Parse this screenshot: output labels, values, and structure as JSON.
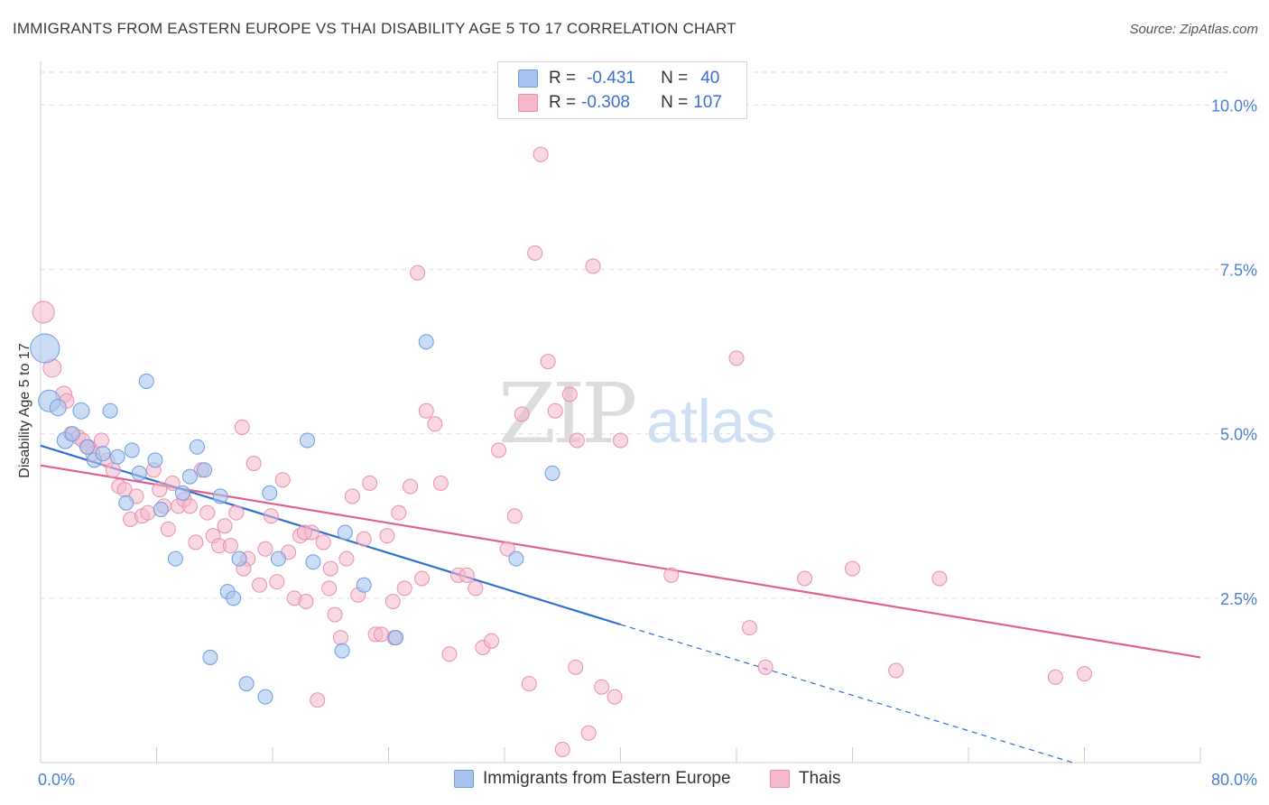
{
  "header": {
    "title": "IMMIGRANTS FROM EASTERN EUROPE VS THAI DISABILITY AGE 5 TO 17 CORRELATION CHART",
    "source": "Source: ZipAtlas.com"
  },
  "legend": {
    "rows": [
      {
        "r_label": "R =",
        "r_value": "-0.431",
        "n_label": "N =",
        "n_value": "40"
      },
      {
        "r_label": "R =",
        "r_value": "-0.308",
        "n_label": "N =",
        "n_value": "107"
      }
    ]
  },
  "watermark": {
    "zip": "ZIP",
    "atlas": "atlas"
  },
  "colors": {
    "blue_fill": "#a8c4ee",
    "blue_stroke": "#6d9be0",
    "blue_line": "#2f6fd0",
    "pink_fill": "#f6b8cc",
    "pink_stroke": "#e98fae",
    "pink_line": "#e0608e",
    "tick_label": "#4a7fd4",
    "grid": "#dddddd"
  },
  "chart_data": {
    "type": "scatter",
    "title": "IMMIGRANTS FROM EASTERN EUROPE VS THAI DISABILITY AGE 5 TO 17 CORRELATION CHART",
    "xlabel": "",
    "ylabel": "Disability Age 5 to 17",
    "xlim": [
      0,
      80
    ],
    "ylim": [
      0,
      10.5
    ],
    "x_tick_labels": [
      "0.0%",
      "80.0%"
    ],
    "y_ticks": [
      2.5,
      5.0,
      7.5,
      10.0
    ],
    "y_tick_labels": [
      "2.5%",
      "5.0%",
      "7.5%",
      "10.0%"
    ],
    "grid": true,
    "legend_position": "bottom",
    "series": [
      {
        "name": "Immigrants from Eastern Europe",
        "color": "#a8c4ee",
        "points": [
          [
            0.3,
            6.3,
            16
          ],
          [
            0.6,
            5.5,
            12
          ],
          [
            1.2,
            5.4,
            9
          ],
          [
            1.7,
            4.9,
            9
          ],
          [
            2.2,
            5.0,
            8
          ],
          [
            2.8,
            5.35,
            9
          ],
          [
            3.2,
            4.8,
            8
          ],
          [
            3.7,
            4.6,
            8
          ],
          [
            4.3,
            4.7,
            8
          ],
          [
            4.8,
            5.35,
            8
          ],
          [
            5.3,
            4.65,
            8
          ],
          [
            5.9,
            3.95,
            8
          ],
          [
            6.3,
            4.75,
            8
          ],
          [
            6.8,
            4.4,
            8
          ],
          [
            7.3,
            5.8,
            8
          ],
          [
            7.9,
            4.6,
            8
          ],
          [
            8.3,
            3.85,
            8
          ],
          [
            9.3,
            3.1,
            8
          ],
          [
            9.8,
            4.1,
            8
          ],
          [
            10.3,
            4.35,
            8
          ],
          [
            10.8,
            4.8,
            8
          ],
          [
            11.3,
            4.45,
            8
          ],
          [
            11.7,
            1.6,
            8
          ],
          [
            12.4,
            4.05,
            8
          ],
          [
            12.9,
            2.6,
            8
          ],
          [
            13.3,
            2.5,
            8
          ],
          [
            13.7,
            3.1,
            8
          ],
          [
            14.2,
            1.2,
            8
          ],
          [
            15.5,
            1.0,
            8
          ],
          [
            15.8,
            4.1,
            8
          ],
          [
            16.4,
            3.1,
            8
          ],
          [
            18.4,
            4.9,
            8
          ],
          [
            18.8,
            3.05,
            8
          ],
          [
            20.8,
            1.7,
            8
          ],
          [
            21.0,
            3.5,
            8
          ],
          [
            22.3,
            2.7,
            8
          ],
          [
            24.5,
            1.9,
            8
          ],
          [
            26.6,
            6.4,
            8
          ],
          [
            32.8,
            3.1,
            8
          ],
          [
            35.3,
            4.4,
            8
          ]
        ]
      },
      {
        "name": "Thais",
        "color": "#f6b8cc",
        "points": [
          [
            0.2,
            6.85,
            12
          ],
          [
            0.8,
            6.0,
            10
          ],
          [
            1.6,
            5.6,
            9
          ],
          [
            1.8,
            5.5,
            8
          ],
          [
            2.1,
            5.0,
            8
          ],
          [
            2.6,
            4.95,
            8
          ],
          [
            2.9,
            4.9,
            8
          ],
          [
            3.3,
            4.8,
            8
          ],
          [
            3.6,
            4.7,
            8
          ],
          [
            4.2,
            4.9,
            8
          ],
          [
            4.6,
            4.6,
            8
          ],
          [
            5.0,
            4.45,
            8
          ],
          [
            5.4,
            4.2,
            8
          ],
          [
            5.8,
            4.15,
            8
          ],
          [
            6.2,
            3.7,
            8
          ],
          [
            6.6,
            4.05,
            8
          ],
          [
            7.0,
            3.75,
            8
          ],
          [
            7.4,
            3.8,
            8
          ],
          [
            7.8,
            4.45,
            8
          ],
          [
            8.2,
            4.15,
            8
          ],
          [
            8.5,
            3.9,
            8
          ],
          [
            8.8,
            3.55,
            8
          ],
          [
            9.1,
            4.25,
            8
          ],
          [
            9.5,
            3.9,
            8
          ],
          [
            9.9,
            4.0,
            8
          ],
          [
            10.3,
            3.9,
            8
          ],
          [
            10.7,
            3.35,
            8
          ],
          [
            11.1,
            4.45,
            8
          ],
          [
            11.5,
            3.8,
            8
          ],
          [
            11.9,
            3.45,
            8
          ],
          [
            12.3,
            3.3,
            8
          ],
          [
            12.7,
            3.6,
            8
          ],
          [
            13.1,
            3.3,
            8
          ],
          [
            13.5,
            3.8,
            8
          ],
          [
            13.9,
            5.1,
            8
          ],
          [
            14.3,
            3.1,
            8
          ],
          [
            14.7,
            4.55,
            8
          ],
          [
            15.1,
            2.7,
            8
          ],
          [
            15.5,
            3.25,
            8
          ],
          [
            15.9,
            3.75,
            8
          ],
          [
            16.3,
            2.75,
            8
          ],
          [
            16.7,
            4.3,
            8
          ],
          [
            17.1,
            3.2,
            8
          ],
          [
            17.5,
            2.5,
            8
          ],
          [
            17.9,
            3.45,
            8
          ],
          [
            18.3,
            2.45,
            8
          ],
          [
            18.7,
            3.5,
            8
          ],
          [
            19.1,
            0.95,
            8
          ],
          [
            19.5,
            3.35,
            8
          ],
          [
            19.9,
            2.65,
            8
          ],
          [
            20.3,
            2.25,
            8
          ],
          [
            20.7,
            1.9,
            8
          ],
          [
            21.1,
            3.1,
            8
          ],
          [
            21.5,
            4.05,
            8
          ],
          [
            21.9,
            2.55,
            8
          ],
          [
            22.3,
            3.4,
            8
          ],
          [
            22.7,
            4.25,
            8
          ],
          [
            23.1,
            1.95,
            8
          ],
          [
            23.5,
            1.95,
            8
          ],
          [
            23.9,
            3.45,
            8
          ],
          [
            24.3,
            2.45,
            8
          ],
          [
            24.7,
            3.8,
            8
          ],
          [
            25.1,
            2.65,
            8
          ],
          [
            25.5,
            4.2,
            8
          ],
          [
            26.0,
            7.45,
            8
          ],
          [
            26.6,
            5.35,
            8
          ],
          [
            27.2,
            5.15,
            8
          ],
          [
            27.6,
            4.25,
            8
          ],
          [
            28.2,
            1.65,
            8
          ],
          [
            28.8,
            2.85,
            8
          ],
          [
            29.4,
            2.85,
            8
          ],
          [
            30.0,
            2.65,
            8
          ],
          [
            30.5,
            1.75,
            8
          ],
          [
            31.1,
            1.85,
            8
          ],
          [
            31.6,
            4.75,
            8
          ],
          [
            32.2,
            3.25,
            8
          ],
          [
            32.7,
            3.75,
            8
          ],
          [
            33.2,
            5.3,
            8
          ],
          [
            33.7,
            1.2,
            8
          ],
          [
            34.1,
            7.75,
            8
          ],
          [
            34.5,
            9.25,
            8
          ],
          [
            35.0,
            6.1,
            8
          ],
          [
            35.5,
            5.35,
            8
          ],
          [
            36.0,
            0.2,
            8
          ],
          [
            36.5,
            5.6,
            8
          ],
          [
            37.0,
            4.9,
            8
          ],
          [
            37.8,
            0.45,
            8
          ],
          [
            38.1,
            7.55,
            8
          ],
          [
            38.7,
            1.15,
            8
          ],
          [
            39.6,
            1.0,
            8
          ],
          [
            40.0,
            4.9,
            8
          ],
          [
            48.0,
            6.15,
            8
          ],
          [
            48.9,
            2.05,
            8
          ],
          [
            50.0,
            1.45,
            8
          ],
          [
            56.0,
            2.95,
            8
          ],
          [
            59.0,
            1.4,
            8
          ],
          [
            62.0,
            2.8,
            8
          ],
          [
            70.0,
            1.3,
            8
          ],
          [
            72.0,
            1.35,
            8
          ],
          [
            36.9,
            1.45,
            8
          ],
          [
            24.4,
            1.9,
            8
          ],
          [
            26.3,
            2.8,
            8
          ],
          [
            20.0,
            2.95,
            8
          ],
          [
            14.0,
            2.95,
            8
          ],
          [
            18.2,
            3.5,
            8
          ],
          [
            43.5,
            2.85,
            8
          ],
          [
            52.7,
            2.8,
            8
          ]
        ]
      }
    ],
    "trend_lines": [
      {
        "series": "Immigrants from Eastern Europe",
        "x": [
          0,
          40
        ],
        "y": [
          4.82,
          2.1
        ],
        "dashed_extension_to": [
          71.2,
          0
        ]
      },
      {
        "series": "Thais",
        "x": [
          0,
          80
        ],
        "y": [
          4.52,
          1.6
        ]
      }
    ]
  },
  "bottom_legend": {
    "items": [
      "Immigrants from Eastern Europe",
      "Thais"
    ]
  }
}
